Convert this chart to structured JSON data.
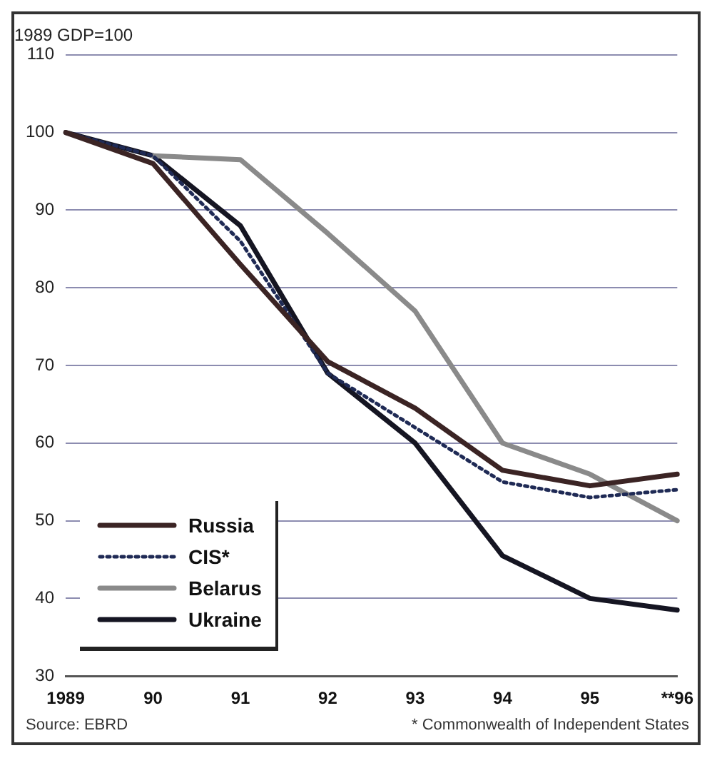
{
  "chart_data": {
    "type": "line",
    "title": "1989 GDP=100",
    "categories": [
      "1989",
      "90",
      "91",
      "92",
      "93",
      "94",
      "95",
      "**96"
    ],
    "series": [
      {
        "name": "Russia",
        "color": "#3b2424",
        "line_style": "solid",
        "values": [
          100,
          96,
          83,
          70.5,
          64.5,
          56.5,
          54.5,
          56
        ]
      },
      {
        "name": "CIS*",
        "color": "#1f2a55",
        "line_style": "dotted",
        "values": [
          100,
          97,
          86,
          69,
          62,
          55,
          53,
          54
        ]
      },
      {
        "name": "Belarus",
        "color": "#8a8a8a",
        "line_style": "solid",
        "values": [
          null,
          97,
          96.5,
          87,
          77,
          60,
          56,
          50
        ]
      },
      {
        "name": "Ukraine",
        "color": "#151522",
        "line_style": "solid",
        "values": [
          100,
          97,
          88,
          69,
          60,
          45.5,
          40,
          38.5
        ]
      }
    ],
    "ylim": [
      30,
      110
    ],
    "yticks": [
      30,
      40,
      50,
      60,
      70,
      80,
      90,
      100,
      110
    ],
    "grid": "y",
    "legend": "bottom left",
    "marker": "none",
    "annotations": [
      "Source: EBRD",
      "* Commonwealth of Independent States"
    ]
  }
}
